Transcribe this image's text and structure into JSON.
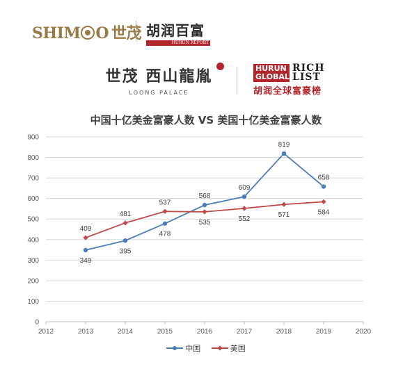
{
  "logos": {
    "shimao_latin": "SHIM",
    "shimao_latin_tail": "O",
    "shimao_cn": "世茂",
    "hurun_cn": "胡润百富",
    "hurun_report": "HURUN REPORT",
    "loong_cn": "世茂 西山龍胤",
    "loong_en": "LOONG PALACE",
    "rich_hurun": "HURUN",
    "rich_global": "GLOBAL",
    "rich_rich": "RICH",
    "rich_list": "LIST",
    "rich_cn": "胡润全球富豪榜"
  },
  "colors": {
    "china": "#4a7ebb",
    "usa": "#be4b48",
    "gridline": "#d9d9d9",
    "axis": "#bfbfbf"
  },
  "chart_data": {
    "type": "line",
    "title": "中国十亿美金富豪人数 VS 美国十亿美金富豪人数",
    "x_ticks": [
      2012,
      2013,
      2014,
      2015,
      2016,
      2017,
      2018,
      2019,
      2020
    ],
    "y_ticks": [
      0,
      100,
      200,
      300,
      400,
      500,
      600,
      700,
      800,
      900
    ],
    "xlim": [
      2012,
      2020
    ],
    "ylim": [
      0,
      900
    ],
    "grid": true,
    "legend_position": "bottom",
    "x": [
      2013,
      2014,
      2015,
      2016,
      2017,
      2018,
      2019
    ],
    "series": [
      {
        "name": "中国",
        "color": "#4a7ebb",
        "marker": "circle",
        "values": [
          349,
          395,
          478,
          568,
          609,
          819,
          658
        ],
        "label_pos": [
          "below",
          "below",
          "below",
          "above",
          "above",
          "above",
          "above"
        ]
      },
      {
        "name": "美国",
        "color": "#be4b48",
        "marker": "diamond",
        "values": [
          409,
          481,
          537,
          535,
          552,
          571,
          584
        ],
        "label_pos": [
          "above",
          "above",
          "above",
          "below",
          "below",
          "below",
          "below"
        ]
      }
    ]
  }
}
